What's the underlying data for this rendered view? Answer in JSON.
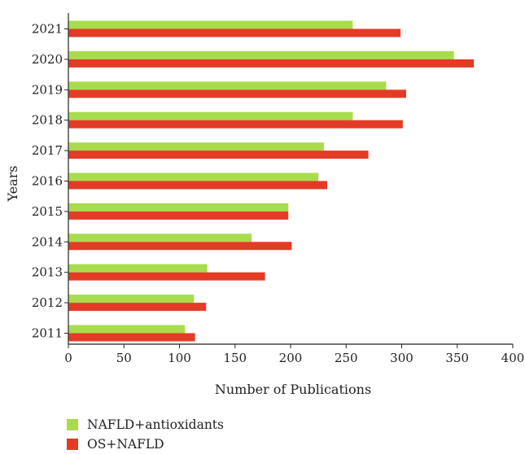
{
  "chart_data": {
    "type": "bar",
    "orientation": "horizontal",
    "categories": [
      "2011",
      "2012",
      "2013",
      "2014",
      "2015",
      "2016",
      "2017",
      "2018",
      "2019",
      "2020",
      "2021"
    ],
    "series": [
      {
        "name": "NAFLD+antioxidants",
        "color": "#a8dc4c",
        "values": [
          105,
          113,
          125,
          165,
          198,
          225,
          230,
          256,
          286,
          347,
          256
        ]
      },
      {
        "name": "OS+NAFLD",
        "color": "#e43b26",
        "values": [
          114,
          124,
          177,
          201,
          198,
          233,
          270,
          301,
          304,
          365,
          299
        ]
      }
    ],
    "xlabel": "Number of Publications",
    "ylabel": "Years",
    "xlim": [
      0,
      400
    ],
    "xticks": [
      "0",
      "50",
      "100",
      "150",
      "200",
      "250",
      "300",
      "350",
      "400"
    ],
    "grid": false,
    "legend_position": "bottom-left"
  }
}
